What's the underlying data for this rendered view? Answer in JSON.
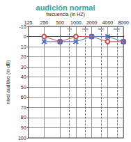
{
  "chart_data": {
    "type": "line",
    "title": "audición normal",
    "subtitle": "frecuencia (in HZ)",
    "y_label": "nivel auditivo (in dB)",
    "x": [
      250,
      500,
      1000,
      2000,
      4000,
      8000
    ],
    "series": [
      {
        "color": "#c0504d",
        "marker": "circle",
        "values": [
          0,
          5,
          0,
          0,
          5,
          5
        ]
      },
      {
        "color": "#4f6fc4",
        "marker": "x",
        "values": [
          5,
          5,
          5,
          0,
          0,
          5
        ]
      }
    ],
    "log": "x",
    "xlim": [
      125,
      8000
    ],
    "xticks": [
      125,
      250,
      500,
      750,
      1000,
      1500,
      2000,
      3000,
      4000,
      6000,
      8000
    ],
    "ylim": [
      -10,
      100
    ],
    "yticks": [
      -10,
      0,
      10,
      20,
      30,
      40,
      50,
      60,
      70,
      80,
      90,
      100
    ],
    "grid": true
  }
}
